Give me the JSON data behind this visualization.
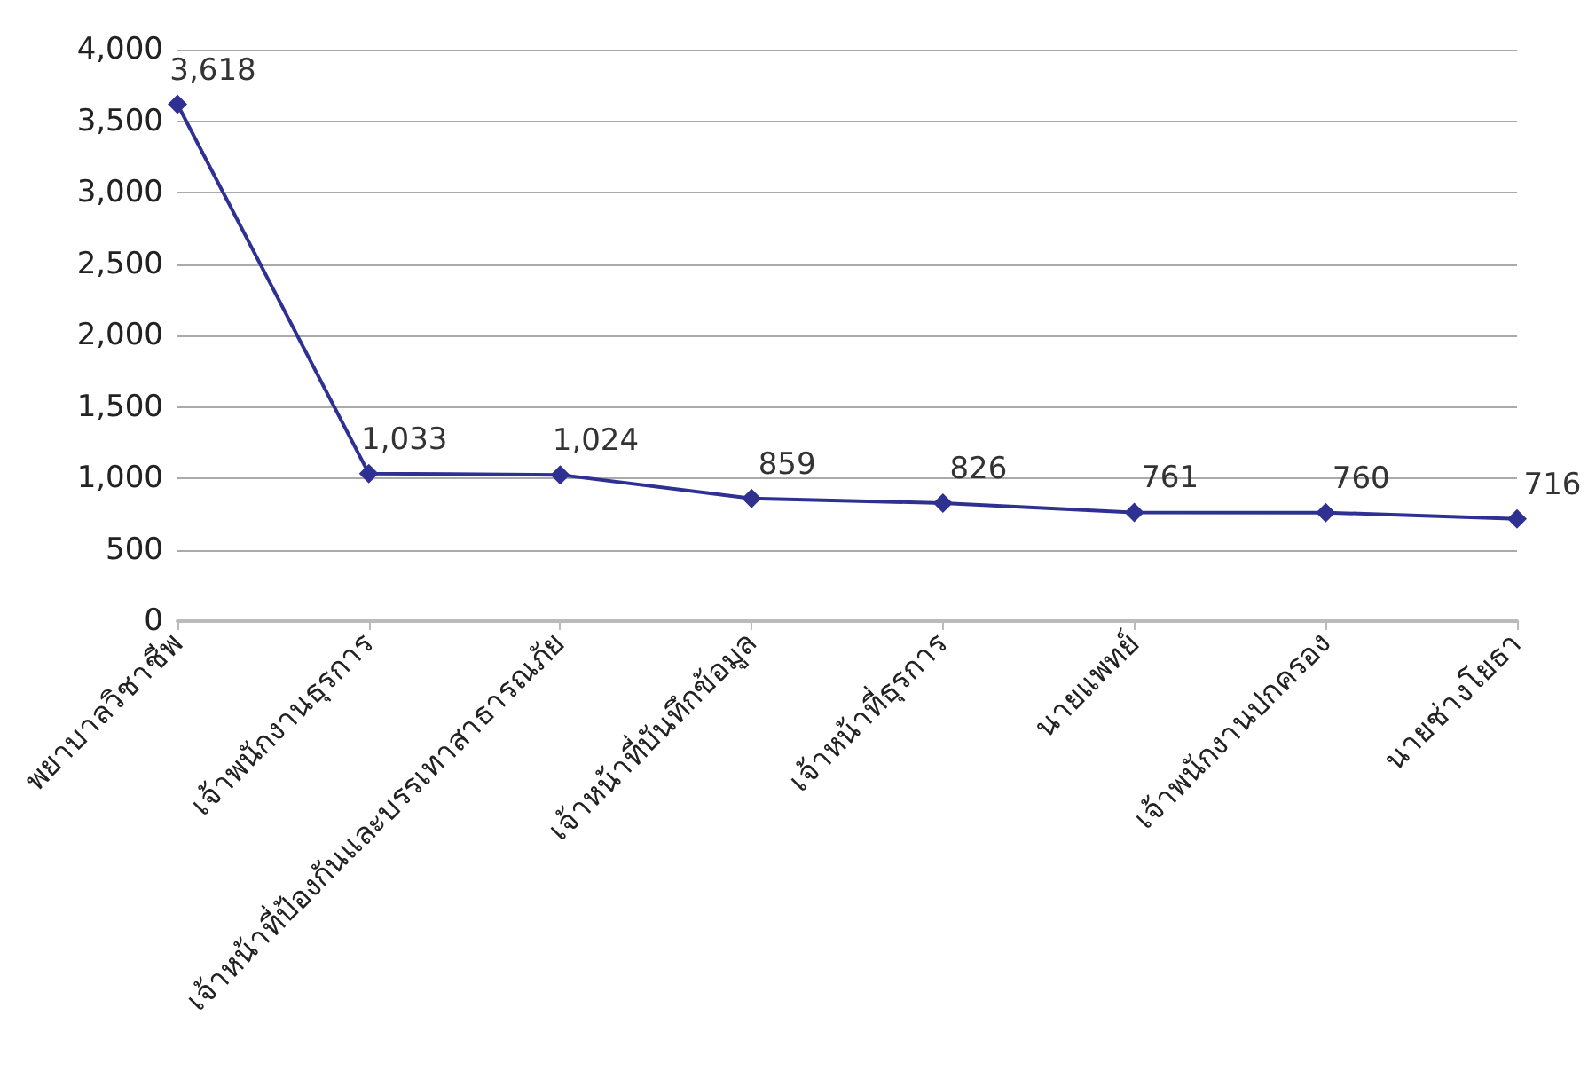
{
  "chart_data": {
    "type": "line",
    "categories": [
      "พยาบาลวิชาชีพ",
      "เจ้าพนักงานธุรการ",
      "เจ้าหน้าที่ป้องกันและบรรเทาสาธารณภัย",
      "เจ้าหน้าที่บันทึกข้อมูล",
      "เจ้าหน้าที่ธุรการ",
      "นายแพทย์",
      "เจ้าพนักงานปกครอง",
      "นายช่างโยธา"
    ],
    "series": [
      {
        "color": "#2e3192",
        "values": [
          3618,
          1033,
          1024,
          859,
          826,
          761,
          760,
          716
        ],
        "value_labels": [
          "3,618",
          "1,033",
          "1,024",
          "859",
          "826",
          "761",
          "760",
          "716"
        ]
      }
    ],
    "ylim": [
      0,
      4000
    ],
    "yticks": [
      0,
      500,
      {
        "value": 1000,
        "label": "1,000"
      },
      {
        "value": 1500,
        "label": "1,500"
      },
      {
        "value": 2000,
        "label": "2,000"
      },
      {
        "value": 2500,
        "label": "2,500"
      },
      {
        "value": 3000,
        "label": "3,000"
      },
      {
        "value": 3500,
        "label": "3,500"
      },
      {
        "value": 4000,
        "label": "4,000"
      }
    ],
    "grid": "y",
    "marker": "diamond"
  }
}
